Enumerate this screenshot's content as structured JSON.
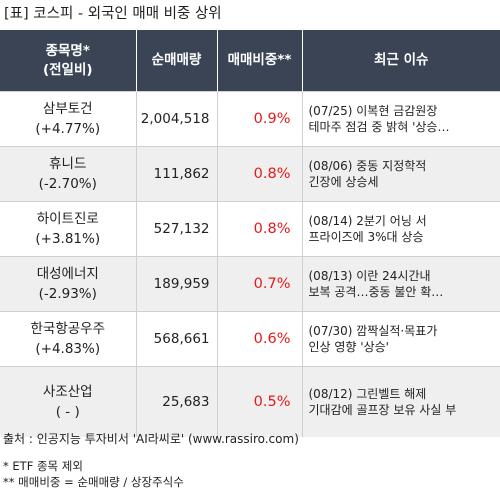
{
  "title": "[표] 코스피 - 외국인 매매 비중 상위",
  "headers": {
    "name_line1": "종목명*",
    "name_line2": "(전일비)",
    "volume": "순매매량",
    "ratio": "매매비중**",
    "issue": "최근 이슈"
  },
  "rows": [
    {
      "name": "삼부토건",
      "change": "(+4.77%)",
      "volume": "2,004,518",
      "ratio": "0.9%",
      "issue_line1": "(07/25) 이복현 금감원장",
      "issue_line2": "테마주 점검 중 밝혀 '상승…"
    },
    {
      "name": "휴니드",
      "change": "(-2.70%)",
      "volume": "111,862",
      "ratio": "0.8%",
      "issue_line1": "(08/06) 중동 지정학적",
      "issue_line2": "긴장에 상승세"
    },
    {
      "name": "하이트진로",
      "change": "(+3.81%)",
      "volume": "527,132",
      "ratio": "0.8%",
      "issue_line1": "(08/14) 2분기 어닝 서",
      "issue_line2": "프라이즈에 3%대 상승"
    },
    {
      "name": "대성에너지",
      "change": "(-2.93%)",
      "volume": "189,959",
      "ratio": "0.7%",
      "issue_line1": "(08/13) 이란 24시간내",
      "issue_line2": "보복 공격…중동 불안 확…"
    },
    {
      "name": "한국항공우주",
      "change": "(+4.83%)",
      "volume": "568,661",
      "ratio": "0.6%",
      "issue_line1": "(07/30) 깜짝실적·목표가",
      "issue_line2": "인상 영향 '상승'"
    },
    {
      "name": "사조산업",
      "change": "( - )",
      "volume": "25,683",
      "ratio": "0.5%",
      "issue_line1": "(08/12) 그린벨트 해제",
      "issue_line2": "기대감에 골프장 보유 사실 부"
    }
  ],
  "source": "출처 : 인공지능 투자비서 'AI라씨로' (www.rassiro.com)",
  "notes": {
    "note1": "* ETF 종목 제외",
    "note2": "** 매매비중 = 순매매량 / 상장주식수"
  },
  "colors": {
    "header_bg": "#3a4455",
    "ratio_text": "#e61919",
    "band_bg": "#efefef"
  }
}
